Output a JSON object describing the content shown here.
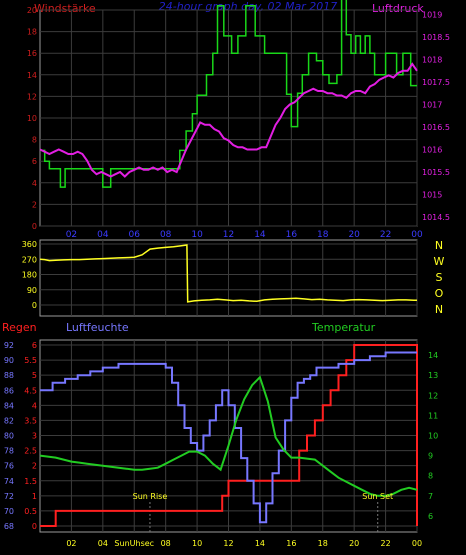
{
  "chart_data": [
    {
      "type": "line",
      "title": "24-hour graph day, 02 Mar 2017",
      "y_left_label": "Windstärke",
      "y_right_label": "Luftdruck",
      "x_ticks": [
        "02",
        "04",
        "06",
        "08",
        "10",
        "12",
        "14",
        "16",
        "18",
        "20",
        "22",
        "00"
      ],
      "y_left_ticks": [
        "0",
        "2",
        "4",
        "6",
        "8",
        "10",
        "12",
        "14",
        "16",
        "18",
        "20"
      ],
      "y_right_ticks": [
        "1014.5",
        "1015",
        "1015.5",
        "1016",
        "1016.5",
        "1017",
        "1017.5",
        "1018",
        "1018.5",
        "1019"
      ],
      "y_left_range": [
        0,
        20
      ],
      "y_right_range": [
        1014.3,
        1019.1
      ],
      "x_range_hours": [
        0,
        24
      ],
      "grid": true,
      "series": [
        {
          "name": "Windstärke",
          "axis": "left",
          "color": "#19d719",
          "step": true,
          "x": [
            0,
            0.3,
            0.6,
            1.3,
            1.6,
            2.4,
            3.0,
            4.0,
            4.5,
            5.2,
            6.0,
            7.0,
            7.6,
            8.4,
            8.9,
            9.3,
            9.7,
            10.0,
            10.6,
            11.0,
            11.3,
            11.7,
            12.2,
            12.6,
            13.1,
            13.7,
            14.3,
            15.0,
            15.7,
            16.0,
            16.4,
            16.7,
            17.1,
            17.6,
            18.0,
            18.4,
            18.9,
            19.2,
            19.5,
            19.8,
            20.1,
            20.4,
            20.7,
            21.0,
            21.3,
            21.6,
            22.0,
            22.4,
            22.7,
            23.1,
            23.6,
            24.0
          ],
          "y": [
            7,
            6,
            5.3,
            3.6,
            5.3,
            5.3,
            5.3,
            3.6,
            5.3,
            5.3,
            5.3,
            5.3,
            5.3,
            5.3,
            7,
            8.8,
            10.4,
            12.1,
            14,
            16,
            20.4,
            17.6,
            16,
            17.6,
            20.4,
            17.6,
            16,
            16,
            12.2,
            9.2,
            12.3,
            14,
            16,
            15.3,
            14,
            13.2,
            14,
            21,
            17.7,
            16,
            17.6,
            16,
            17.6,
            16,
            14,
            14,
            16,
            16,
            14,
            16,
            13,
            13
          ]
        },
        {
          "name": "Luftdruck",
          "axis": "right",
          "color": "#e21ee2",
          "step": false,
          "x": [
            0,
            0.3,
            0.6,
            0.9,
            1.2,
            1.5,
            1.8,
            2.1,
            2.4,
            2.7,
            3.0,
            3.3,
            3.6,
            3.9,
            4.2,
            4.5,
            4.8,
            5.1,
            5.4,
            5.7,
            6.0,
            6.3,
            6.6,
            6.9,
            7.2,
            7.5,
            7.8,
            8.1,
            8.4,
            8.7,
            9.0,
            9.3,
            9.6,
            9.9,
            10.2,
            10.5,
            10.8,
            11.1,
            11.4,
            11.7,
            12.0,
            12.3,
            12.6,
            12.9,
            13.2,
            13.5,
            13.8,
            14.1,
            14.4,
            14.7,
            15.0,
            15.3,
            15.6,
            15.9,
            16.2,
            16.5,
            16.8,
            17.1,
            17.4,
            17.7,
            18.0,
            18.3,
            18.6,
            18.9,
            19.2,
            19.5,
            19.8,
            20.1,
            20.4,
            20.7,
            21.0,
            21.3,
            21.6,
            21.9,
            22.2,
            22.5,
            22.8,
            23.1,
            23.4,
            23.7,
            24.0
          ],
          "y": [
            1016.0,
            1015.95,
            1015.9,
            1015.95,
            1016.0,
            1015.95,
            1015.9,
            1015.9,
            1015.95,
            1015.9,
            1015.75,
            1015.55,
            1015.45,
            1015.5,
            1015.45,
            1015.4,
            1015.45,
            1015.5,
            1015.4,
            1015.5,
            1015.55,
            1015.6,
            1015.55,
            1015.55,
            1015.6,
            1015.55,
            1015.6,
            1015.5,
            1015.55,
            1015.5,
            1015.75,
            1016.0,
            1016.2,
            1016.4,
            1016.6,
            1016.55,
            1016.55,
            1016.45,
            1016.4,
            1016.25,
            1016.2,
            1016.1,
            1016.05,
            1016.05,
            1016.0,
            1016.0,
            1016.0,
            1016.05,
            1016.05,
            1016.3,
            1016.55,
            1016.7,
            1016.9,
            1017.0,
            1017.05,
            1017.15,
            1017.25,
            1017.3,
            1017.35,
            1017.3,
            1017.3,
            1017.25,
            1017.25,
            1017.2,
            1017.2,
            1017.15,
            1017.25,
            1017.3,
            1017.3,
            1017.25,
            1017.4,
            1017.45,
            1017.55,
            1017.6,
            1017.65,
            1017.6,
            1017.7,
            1017.75,
            1017.75,
            1017.9,
            1017.75
          ]
        }
      ]
    },
    {
      "type": "line",
      "title": "",
      "x_ticks": [],
      "y_left_ticks": [
        "360",
        "270",
        "180",
        "90",
        "0"
      ],
      "y_left_range": [
        0,
        360
      ],
      "x_range_hours": [
        0,
        24
      ],
      "right_labels": [
        "N",
        "W",
        "S",
        "O",
        "N"
      ],
      "grid": true,
      "series": [
        {
          "name": "",
          "color": "#ffff22",
          "x": [
            0,
            0.3,
            0.6,
            1.0,
            1.5,
            2.0,
            2.5,
            3.0,
            3.5,
            4.0,
            4.5,
            5.0,
            5.5,
            6.0,
            6.5,
            7.0,
            7.5,
            8.0,
            8.5,
            9.0,
            9.35,
            9.4,
            9.8,
            10.3,
            10.8,
            11.3,
            11.8,
            12.3,
            12.8,
            13.3,
            13.8,
            14.3,
            14.8,
            15.3,
            15.8,
            16.3,
            16.8,
            17.3,
            17.8,
            18.3,
            18.8,
            19.3,
            19.8,
            20.3,
            20.8,
            21.3,
            21.8,
            22.3,
            22.8,
            23.3,
            23.8,
            24.0
          ],
          "y": [
            270,
            268,
            262,
            264,
            266,
            268,
            268,
            270,
            272,
            274,
            276,
            278,
            280,
            282,
            296,
            330,
            336,
            340,
            344,
            350,
            354,
            18,
            24,
            28,
            30,
            34,
            30,
            26,
            28,
            24,
            22,
            30,
            34,
            36,
            38,
            40,
            36,
            32,
            34,
            30,
            28,
            26,
            30,
            32,
            30,
            28,
            26,
            28,
            30,
            30,
            28,
            28
          ]
        }
      ]
    },
    {
      "type": "line",
      "title": "",
      "x_ticks": [
        "02",
        "04",
        "SunUhsec",
        "08",
        "10",
        "12",
        "14",
        "16",
        "18",
        "20",
        "22",
        "00"
      ],
      "x_range_hours": [
        0,
        24
      ],
      "grid": true,
      "axes": {
        "regen": {
          "label": "Regen",
          "color": "#ff2020",
          "ticks": [
            "0",
            "0.5",
            "1",
            "1.5",
            "2",
            "2.5",
            "3",
            "3.5",
            "4",
            "4.5",
            "5",
            "5.5",
            "6"
          ],
          "range": [
            0,
            6
          ]
        },
        "luftfeuchte": {
          "label": "Luftfeuchte",
          "color": "#7777ff",
          "ticks": [
            "68",
            "70",
            "72",
            "74",
            "76",
            "78",
            "80",
            "82",
            "84",
            "86",
            "88",
            "90",
            "92"
          ],
          "range": [
            68,
            92
          ]
        },
        "temperatur": {
          "label": "Temperatur",
          "color": "#22cc22",
          "ticks": [
            "6",
            "7",
            "8",
            "9",
            "10",
            "11",
            "12",
            "13",
            "14"
          ],
          "range": [
            5.5,
            14.5
          ]
        }
      },
      "annotations": [
        {
          "text": "Sun Rise",
          "x": 7.0
        },
        {
          "text": "Sun Set",
          "x": 21.5
        }
      ],
      "series": [
        {
          "name": "Regen",
          "axis": "regen",
          "color": "#ff2020",
          "step": true,
          "x": [
            0,
            0.7,
            1.0,
            11.0,
            11.6,
            12.0,
            16.0,
            16.5,
            17.0,
            17.5,
            18.0,
            18.5,
            19.0,
            19.5,
            20.0,
            23.9,
            24.0
          ],
          "y": [
            0,
            0,
            0.5,
            0.5,
            1.0,
            1.5,
            1.5,
            2.5,
            3.0,
            3.5,
            4.0,
            4.5,
            5.0,
            5.5,
            6.0,
            6.0,
            0
          ]
        },
        {
          "name": "Luftfeuchte",
          "axis": "luftfeuchte",
          "color": "#7777ff",
          "step": true,
          "x": [
            0,
            0.8,
            1.6,
            2.4,
            3.2,
            4.0,
            5.0,
            6.0,
            7.0,
            7.5,
            8.0,
            8.4,
            8.8,
            9.2,
            9.6,
            10.0,
            10.4,
            10.8,
            11.2,
            11.6,
            12.0,
            12.4,
            12.8,
            13.2,
            13.6,
            14.0,
            14.4,
            14.8,
            15.2,
            15.6,
            16.0,
            16.4,
            16.8,
            17.2,
            17.6,
            18.0,
            18.5,
            19.0,
            19.5,
            20.0,
            20.5,
            21.0,
            21.5,
            22.0,
            22.5,
            23.0,
            23.5,
            24.0
          ],
          "y": [
            86,
            87,
            87.5,
            88,
            88.5,
            89,
            89.5,
            89.5,
            89.5,
            89.5,
            89,
            87,
            84,
            81,
            79,
            78,
            80,
            82,
            84,
            86,
            84,
            81,
            77,
            74,
            71,
            68.5,
            71,
            75,
            78,
            82,
            85,
            87,
            87.5,
            88,
            89,
            89,
            89,
            89.5,
            89.5,
            90,
            90,
            90.5,
            90.5,
            91,
            91,
            91,
            91,
            91
          ]
        },
        {
          "name": "Temperatur",
          "axis": "temperatur",
          "color": "#22cc22",
          "step": false,
          "x": [
            0,
            0.5,
            1.0,
            1.5,
            2.0,
            2.5,
            3.0,
            3.5,
            4.0,
            4.5,
            5.0,
            5.5,
            6.0,
            6.5,
            7.0,
            7.5,
            8.0,
            8.5,
            9.0,
            9.5,
            10.0,
            10.5,
            11.0,
            11.5,
            12.0,
            12.5,
            13.0,
            13.5,
            14.0,
            14.5,
            15.0,
            15.5,
            16.0,
            16.5,
            17.0,
            17.5,
            18.0,
            18.5,
            19.0,
            19.5,
            20.0,
            20.5,
            21.0,
            21.5,
            22.0,
            22.5,
            23.0,
            23.5,
            24.0
          ],
          "y": [
            9.0,
            8.95,
            8.9,
            8.8,
            8.7,
            8.65,
            8.6,
            8.55,
            8.5,
            8.45,
            8.4,
            8.35,
            8.3,
            8.3,
            8.35,
            8.4,
            8.6,
            8.8,
            9.0,
            9.2,
            9.2,
            9.0,
            8.6,
            8.3,
            9.5,
            10.8,
            11.8,
            12.5,
            12.9,
            11.7,
            9.9,
            9.3,
            8.9,
            8.9,
            8.85,
            8.8,
            8.5,
            8.2,
            7.9,
            7.7,
            7.5,
            7.3,
            7.1,
            7.0,
            7.0,
            7.1,
            7.3,
            7.4,
            7.3
          ]
        }
      ]
    }
  ]
}
